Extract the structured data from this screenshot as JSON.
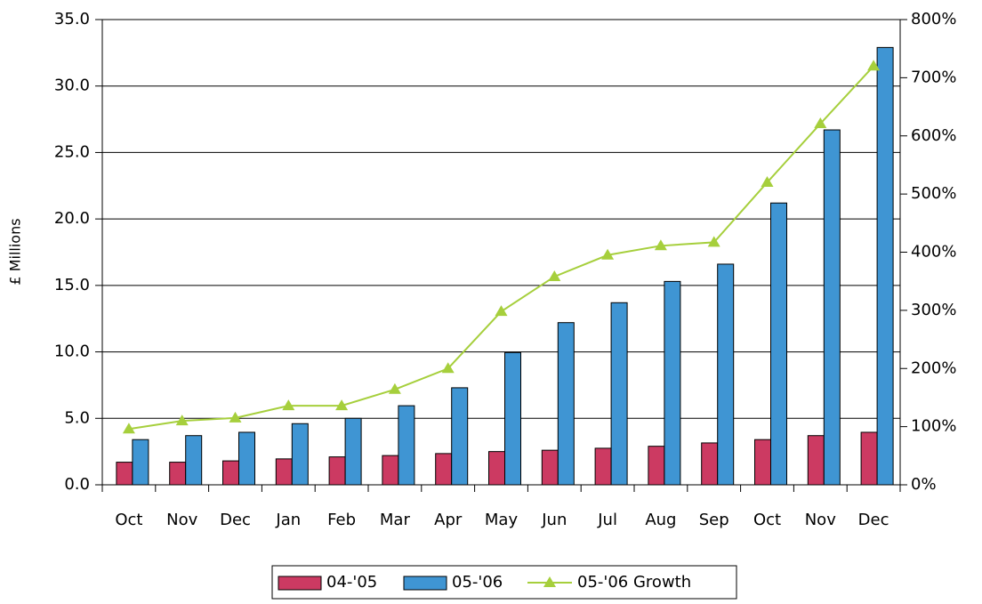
{
  "chart_data": {
    "type": "bar",
    "y_label": "£ Millions",
    "categories": [
      "Oct",
      "Nov",
      "Dec",
      "Jan",
      "Feb",
      "Mar",
      "Apr",
      "May",
      "Jun",
      "Jul",
      "Aug",
      "Sep",
      "Oct",
      "Nov",
      "Dec"
    ],
    "series": [
      {
        "name": "04-'05",
        "type": "bar",
        "color": "#cc3a62",
        "values": [
          1.7,
          1.7,
          1.8,
          1.95,
          2.1,
          2.2,
          2.35,
          2.5,
          2.6,
          2.75,
          2.9,
          3.15,
          3.4,
          3.7,
          3.95
        ]
      },
      {
        "name": "05-'06",
        "type": "bar",
        "color": "#3f95d3",
        "values": [
          3.4,
          3.7,
          3.95,
          4.6,
          5.0,
          5.95,
          7.3,
          9.95,
          12.2,
          13.7,
          15.3,
          16.6,
          21.2,
          26.7,
          32.9
        ]
      },
      {
        "name": "05-'06 Growth",
        "type": "line",
        "axis": "y2",
        "marker": "triangle",
        "color": "#a6cf3c",
        "values": [
          96,
          110,
          115,
          136,
          136,
          164,
          200,
          298,
          358,
          395,
          411,
          417,
          520,
          621,
          720
        ]
      }
    ],
    "ylim": [
      0,
      35
    ],
    "yticks": [
      {
        "value": 0,
        "label": "0.0"
      },
      {
        "value": 5,
        "label": "5.0"
      },
      {
        "value": 10,
        "label": "10.0"
      },
      {
        "value": 15,
        "label": "15.0"
      },
      {
        "value": 20,
        "label": "20.0"
      },
      {
        "value": 25,
        "label": "25.0"
      },
      {
        "value": 30,
        "label": "30.0"
      },
      {
        "value": 35,
        "label": "35.0"
      }
    ],
    "y2lim": [
      0,
      800
    ],
    "y2ticks": [
      {
        "value": 0,
        "label": "0%"
      },
      {
        "value": 100,
        "label": "100%"
      },
      {
        "value": 200,
        "label": "200%"
      },
      {
        "value": 300,
        "label": "300%"
      },
      {
        "value": 400,
        "label": "400%"
      },
      {
        "value": 500,
        "label": "500%"
      },
      {
        "value": 600,
        "label": "600%"
      },
      {
        "value": 700,
        "label": "700%"
      },
      {
        "value": 800,
        "label": "800%"
      }
    ],
    "grid": true,
    "legend": "bottom"
  }
}
